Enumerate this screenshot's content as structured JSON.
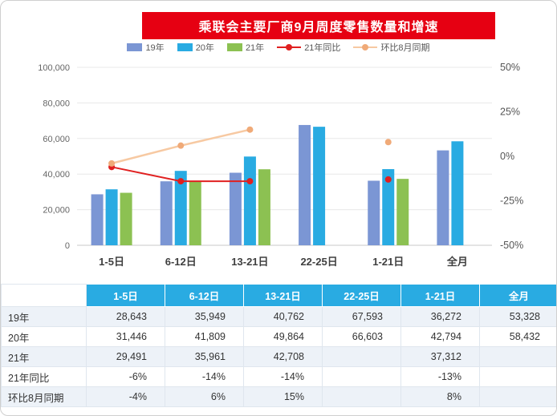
{
  "title": "乘联会主要厂商9月周度零售数量和增速",
  "colors": {
    "title_bg": "#e60012",
    "header_bg": "#29abe2",
    "row_alt": "#edf2f8"
  },
  "chart_data": {
    "type": "bar",
    "categories": [
      "1-5日",
      "6-12日",
      "13-21日",
      "22-25日",
      "1-21日",
      "全月"
    ],
    "bar_series": [
      {
        "name": "19年",
        "color": "#7b96d4",
        "values": [
          28643,
          35949,
          40762,
          67593,
          36272,
          53328
        ]
      },
      {
        "name": "20年",
        "color": "#29abe2",
        "values": [
          31446,
          41809,
          49864,
          66603,
          42794,
          58432
        ]
      },
      {
        "name": "21年",
        "color": "#8cc152",
        "values": [
          29491,
          35961,
          42708,
          null,
          37312,
          null
        ]
      }
    ],
    "line_series": [
      {
        "name": "21年同比",
        "color": "#e02020",
        "dot_color": "#e02020",
        "width": 2,
        "values": [
          -6,
          -14,
          -14,
          null,
          -13,
          null
        ]
      },
      {
        "name": "环比8月同期",
        "color": "#f7c9a2",
        "dot_color": "#f0aa78",
        "width": 2.5,
        "values": [
          -4,
          6,
          15,
          null,
          8,
          null
        ]
      }
    ],
    "left_axis": {
      "min": 0,
      "max": 100000,
      "ticks": [
        "0",
        "20,000",
        "40,000",
        "60,000",
        "80,000",
        "100,000"
      ]
    },
    "right_axis": {
      "min": -50,
      "max": 50,
      "ticks": [
        "-50%",
        "-25%",
        "0%",
        "25%",
        "50%"
      ]
    },
    "grid": true,
    "legend_position": "top"
  },
  "table": {
    "headers": [
      "",
      "1-5日",
      "6-12日",
      "13-21日",
      "22-25日",
      "1-21日",
      "全月"
    ],
    "rows": [
      {
        "label": "19年",
        "cells": [
          "28,643",
          "35,949",
          "40,762",
          "67,593",
          "36,272",
          "53,328"
        ]
      },
      {
        "label": "20年",
        "cells": [
          "31,446",
          "41,809",
          "49,864",
          "66,603",
          "42,794",
          "58,432"
        ]
      },
      {
        "label": "21年",
        "cells": [
          "29,491",
          "35,961",
          "42,708",
          "",
          "37,312",
          ""
        ]
      },
      {
        "label": "21年同比",
        "cells": [
          "-6%",
          "-14%",
          "-14%",
          "",
          "-13%",
          ""
        ]
      },
      {
        "label": "环比8月同期",
        "cells": [
          "-4%",
          "6%",
          "15%",
          "",
          "8%",
          ""
        ]
      }
    ]
  }
}
